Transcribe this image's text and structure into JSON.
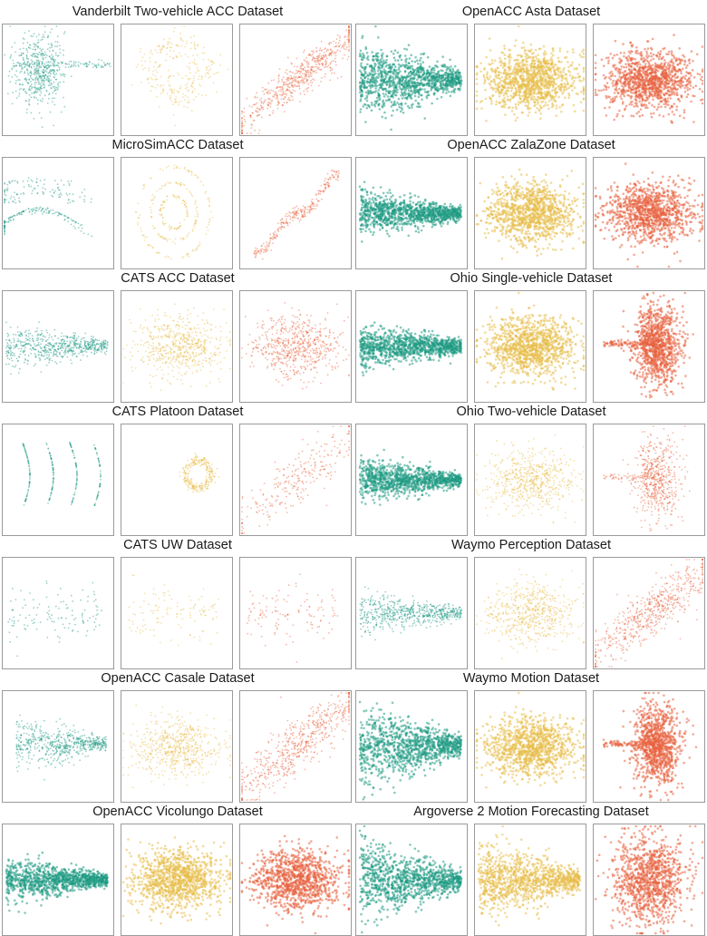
{
  "colors": {
    "panel_1": "#1f9a84",
    "panel_2": "#e8bd4a",
    "panel_3": "#e8633f",
    "border": "#9a9a9a"
  },
  "chart_data": [
    {
      "type": "scatter",
      "title": "Vanderbilt Two-vehicle ACC Dataset",
      "panels": [
        {
          "shape": "trajectory-cluster",
          "density": "medium"
        },
        {
          "shape": "loop-cloud",
          "density": "sparse"
        },
        {
          "shape": "diagonal-band",
          "density": "medium"
        }
      ]
    },
    {
      "type": "scatter",
      "title": "MicroSimACC Dataset",
      "panels": [
        {
          "shape": "nested-arcs",
          "density": "sparse"
        },
        {
          "shape": "nested-rings",
          "density": "sparse"
        },
        {
          "shape": "diagonal-loops",
          "density": "sparse"
        }
      ]
    },
    {
      "type": "scatter",
      "title": "CATS ACC Dataset",
      "panels": [
        {
          "shape": "horizontal-fan",
          "density": "medium"
        },
        {
          "shape": "blob",
          "density": "medium"
        },
        {
          "shape": "blob",
          "density": "medium"
        }
      ]
    },
    {
      "type": "scatter",
      "title": "CATS Platoon Dataset",
      "panels": [
        {
          "shape": "four-curved-streaks",
          "density": "sparse"
        },
        {
          "shape": "small-ring",
          "density": "sparse"
        },
        {
          "shape": "diagonal-cloud",
          "density": "sparse"
        }
      ]
    },
    {
      "type": "scatter",
      "title": "CATS UW Dataset",
      "panels": [
        {
          "shape": "vertical-bands",
          "density": "very-sparse"
        },
        {
          "shape": "vertical-bands",
          "density": "very-sparse"
        },
        {
          "shape": "vertical-bands",
          "density": "very-sparse"
        }
      ]
    },
    {
      "type": "scatter",
      "title": "OpenACC Casale Dataset",
      "panels": [
        {
          "shape": "wedge",
          "density": "medium"
        },
        {
          "shape": "blob",
          "density": "medium"
        },
        {
          "shape": "diagonal-blob",
          "density": "medium"
        }
      ]
    },
    {
      "type": "scatter",
      "title": "OpenACC Vicolungo Dataset",
      "panels": [
        {
          "shape": "horizontal-fan",
          "density": "dense"
        },
        {
          "shape": "blob",
          "density": "dense"
        },
        {
          "shape": "blob",
          "density": "dense"
        }
      ]
    },
    {
      "type": "scatter",
      "title": "OpenACC Asta Dataset",
      "panels": [
        {
          "shape": "triangular-fan",
          "density": "dense"
        },
        {
          "shape": "blob",
          "density": "dense"
        },
        {
          "shape": "blob",
          "density": "dense"
        }
      ]
    },
    {
      "type": "scatter",
      "title": "OpenACC ZalaZone Dataset",
      "panels": [
        {
          "shape": "horizontal-fan",
          "density": "dense"
        },
        {
          "shape": "blob",
          "density": "dense"
        },
        {
          "shape": "blob",
          "density": "dense"
        }
      ]
    },
    {
      "type": "scatter",
      "title": "Ohio Single-vehicle Dataset",
      "panels": [
        {
          "shape": "horizontal-fan",
          "density": "dense"
        },
        {
          "shape": "blob",
          "density": "dense"
        },
        {
          "shape": "vertical-blob",
          "density": "dense"
        }
      ]
    },
    {
      "type": "scatter",
      "title": "Ohio Two-vehicle Dataset",
      "panels": [
        {
          "shape": "horizontal-fan",
          "density": "dense"
        },
        {
          "shape": "blob",
          "density": "medium"
        },
        {
          "shape": "vertical-blob",
          "density": "medium"
        }
      ]
    },
    {
      "type": "scatter",
      "title": "Waymo Perception Dataset",
      "panels": [
        {
          "shape": "horizontal-fan",
          "density": "medium"
        },
        {
          "shape": "blob",
          "density": "medium"
        },
        {
          "shape": "diagonal-blob",
          "density": "medium"
        }
      ]
    },
    {
      "type": "scatter",
      "title": "Waymo Motion Dataset",
      "panels": [
        {
          "shape": "triangular-fan",
          "density": "dense"
        },
        {
          "shape": "blob",
          "density": "dense"
        },
        {
          "shape": "vertical-blob",
          "density": "dense"
        }
      ]
    },
    {
      "type": "scatter",
      "title": "Argoverse 2 Motion Forecasting Dataset",
      "panels": [
        {
          "shape": "triangular-fan",
          "density": "dense"
        },
        {
          "shape": "triangular-fan",
          "density": "dense"
        },
        {
          "shape": "round-blob",
          "density": "dense"
        }
      ]
    }
  ]
}
